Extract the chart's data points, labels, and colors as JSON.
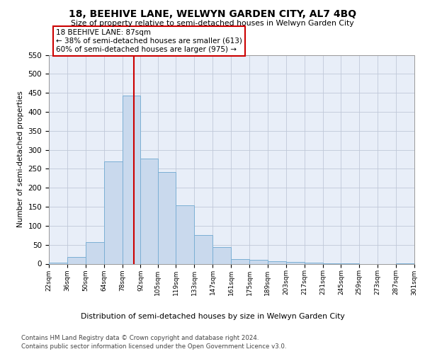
{
  "title": "18, BEEHIVE LANE, WELWYN GARDEN CITY, AL7 4BQ",
  "subtitle": "Size of property relative to semi-detached houses in Welwyn Garden City",
  "xlabel": "Distribution of semi-detached houses by size in Welwyn Garden City",
  "ylabel": "Number of semi-detached properties",
  "footer1": "Contains HM Land Registry data © Crown copyright and database right 2024.",
  "footer2": "Contains public sector information licensed under the Open Government Licence v3.0.",
  "annotation_line1": "18 BEEHIVE LANE: 87sqm",
  "annotation_line2": "← 38% of semi-detached houses are smaller (613)",
  "annotation_line3": "60% of semi-detached houses are larger (975) →",
  "property_size": 87,
  "bin_labels": [
    "22sqm",
    "36sqm",
    "50sqm",
    "64sqm",
    "78sqm",
    "92sqm",
    "105sqm",
    "119sqm",
    "133sqm",
    "147sqm",
    "161sqm",
    "175sqm",
    "189sqm",
    "203sqm",
    "217sqm",
    "231sqm",
    "245sqm",
    "259sqm",
    "273sqm",
    "287sqm",
    "301sqm"
  ],
  "bin_edges": [
    22,
    36,
    50,
    64,
    78,
    92,
    105,
    119,
    133,
    147,
    161,
    175,
    189,
    203,
    217,
    231,
    245,
    259,
    273,
    287,
    301
  ],
  "bar_values": [
    3,
    17,
    57,
    270,
    443,
    276,
    242,
    153,
    75,
    44,
    13,
    11,
    7,
    4,
    2,
    1,
    1,
    0,
    0,
    1
  ],
  "bar_color": "#c9d9ed",
  "bar_edge_color": "#7bafd4",
  "grid_color": "#c0c8d8",
  "vline_color": "#cc0000",
  "vline_x": 87,
  "ylim": [
    0,
    550
  ],
  "yticks": [
    0,
    50,
    100,
    150,
    200,
    250,
    300,
    350,
    400,
    450,
    500,
    550
  ],
  "annotation_box_edge": "#cc0000",
  "background_color": "#e8eef8"
}
